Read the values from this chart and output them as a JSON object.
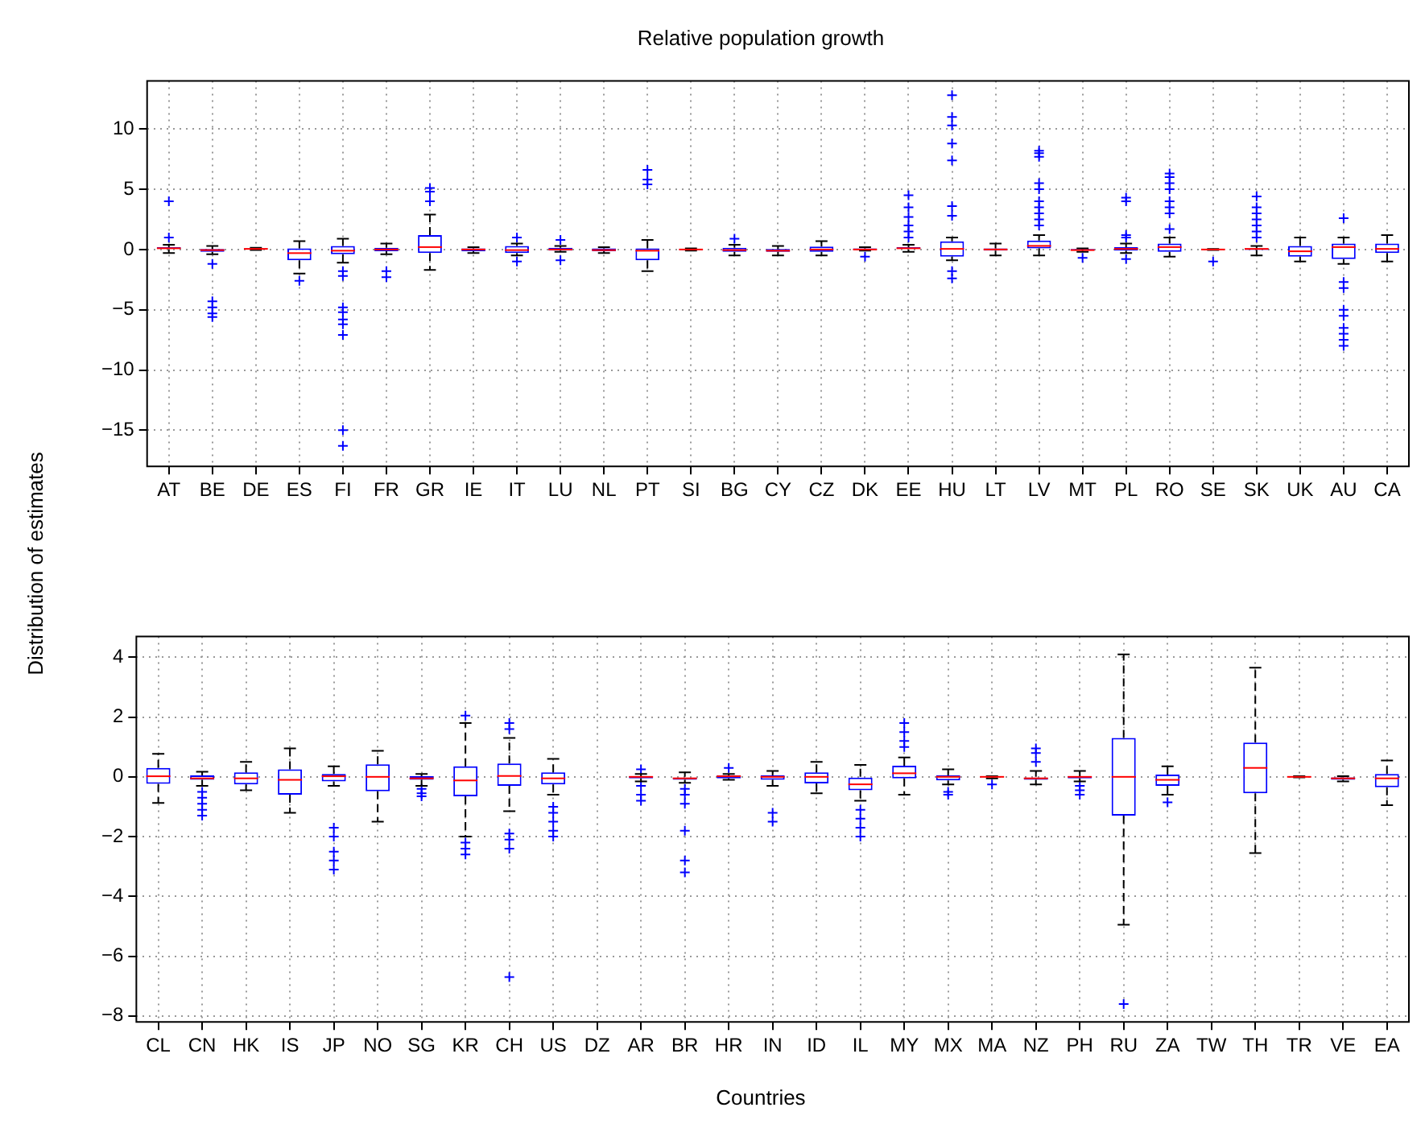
{
  "chart_data": [
    {
      "type": "box",
      "title": "Relative population growth",
      "ylabel": "Distribution of estimates",
      "color": "#0000ff",
      "marker": "cross",
      "grid": true,
      "ylim": [
        -18,
        14
      ],
      "yticks": [
        -15,
        -10,
        -5,
        0,
        5,
        10
      ],
      "categories": [
        "AT",
        "BE",
        "DE",
        "ES",
        "FI",
        "FR",
        "GR",
        "IE",
        "IT",
        "LU",
        "NL",
        "PT",
        "SI",
        "BG",
        "CY",
        "CZ",
        "DK",
        "EE",
        "HU",
        "LT",
        "LV",
        "MT",
        "PL",
        "RO",
        "SE",
        "SK",
        "UK",
        "AU",
        "CA"
      ],
      "boxes": [
        {
          "low": -0.3,
          "q1": 0,
          "median": 0.1,
          "q3": 0.2,
          "high": 0.4,
          "outliers": [
            1,
            4
          ]
        },
        {
          "low": -0.4,
          "q1": -0.2,
          "median": -0.05,
          "q3": 0.05,
          "high": 0.3,
          "outliers": [
            -1.2,
            -4.3,
            -4.8,
            -5.3,
            -5.6
          ]
        },
        {
          "low": -0.05,
          "q1": 0,
          "median": 0.05,
          "q3": 0.1,
          "high": 0.15
        },
        {
          "low": -2,
          "q1": -0.9,
          "median": -0.3,
          "q3": 0.1,
          "high": 0.7,
          "outliers": [
            -2.6
          ]
        },
        {
          "low": -1.1,
          "q1": -0.4,
          "median": -0.1,
          "q3": 0.3,
          "high": 0.9,
          "outliers": [
            -1.8,
            -2.2,
            -4.8,
            -5.2,
            -5.8,
            -6.2,
            -7.1,
            -15,
            -16.3
          ]
        },
        {
          "low": -0.4,
          "q1": -0.15,
          "median": 0,
          "q3": 0.15,
          "high": 0.5,
          "outliers": [
            -1.8,
            -2.3
          ]
        },
        {
          "low": -1.7,
          "q1": -0.3,
          "median": 0.2,
          "q3": 1.2,
          "high": 2.9,
          "outliers": [
            4,
            4.8,
            5.1
          ]
        },
        {
          "low": -0.3,
          "q1": -0.15,
          "median": 0,
          "q3": 0.1,
          "high": 0.2
        },
        {
          "low": -0.5,
          "q1": -0.3,
          "median": -0.05,
          "q3": 0.3,
          "high": 0.5,
          "outliers": [
            -1,
            1
          ]
        },
        {
          "low": -0.2,
          "q1": -0.1,
          "median": 0,
          "q3": 0.15,
          "high": 0.3,
          "outliers": [
            -0.9,
            0.8
          ]
        },
        {
          "low": -0.3,
          "q1": -0.15,
          "median": -0.05,
          "q3": 0.1,
          "high": 0.2
        },
        {
          "low": -1.8,
          "q1": -0.9,
          "median": -0.1,
          "q3": 0.1,
          "high": 0.8,
          "outliers": [
            5.4,
            5.8,
            6.6
          ]
        },
        {
          "low": -0.1,
          "q1": -0.05,
          "median": 0,
          "q3": 0.05,
          "high": 0.1
        },
        {
          "low": -0.5,
          "q1": -0.2,
          "median": -0.05,
          "q3": 0.15,
          "high": 0.4,
          "outliers": [
            0.9
          ]
        },
        {
          "low": -0.5,
          "q1": -0.2,
          "median": -0.1,
          "q3": 0.05,
          "high": 0.3
        },
        {
          "low": -0.5,
          "q1": -0.2,
          "median": 0,
          "q3": 0.25,
          "high": 0.7
        },
        {
          "low": -0.1,
          "q1": -0.05,
          "median": 0,
          "q3": 0.1,
          "high": 0.2,
          "outliers": [
            -0.6
          ]
        },
        {
          "low": -0.2,
          "q1": 0,
          "median": 0.1,
          "q3": 0.2,
          "high": 0.4,
          "outliers": [
            1,
            1.5,
            2,
            2.7,
            3.5,
            4.5
          ]
        },
        {
          "low": -0.9,
          "q1": -0.6,
          "median": 0.05,
          "q3": 0.67,
          "high": 1,
          "outliers": [
            -1.8,
            -2.4,
            2.8,
            3.6,
            7.4,
            8.8,
            10.3,
            11,
            12.8
          ]
        },
        {
          "low": -0.5,
          "q1": -0.1,
          "median": 0,
          "q3": 0.1,
          "high": 0.5
        },
        {
          "low": -0.5,
          "q1": 0.1,
          "median": 0.3,
          "q3": 0.75,
          "high": 1.2,
          "outliers": [
            2,
            2.5,
            3,
            3.5,
            4,
            5,
            5.5,
            7.7,
            8,
            8.2
          ]
        },
        {
          "low": -0.2,
          "q1": -0.1,
          "median": -0.05,
          "q3": 0.05,
          "high": 0.1,
          "outliers": [
            -0.7
          ]
        },
        {
          "low": -0.3,
          "q1": -0.1,
          "median": 0.05,
          "q3": 0.2,
          "high": 0.5,
          "outliers": [
            -0.8,
            1,
            1.2,
            4,
            4.3
          ]
        },
        {
          "low": -0.6,
          "q1": -0.2,
          "median": 0.2,
          "q3": 0.5,
          "high": 1,
          "outliers": [
            1.7,
            3,
            3.5,
            4,
            5,
            5.5,
            6,
            6.3
          ]
        },
        {
          "low": -0.05,
          "q1": -0.02,
          "median": 0,
          "q3": 0.02,
          "high": 0.05,
          "outliers": [
            -1
          ]
        },
        {
          "low": -0.5,
          "q1": -0.05,
          "median": 0.05,
          "q3": 0.1,
          "high": 0.3,
          "outliers": [
            1,
            1.5,
            2,
            2.5,
            3,
            3.5,
            4.4
          ]
        },
        {
          "low": -1,
          "q1": -0.6,
          "median": -0.15,
          "q3": 0.3,
          "high": 1
        },
        {
          "low": -1.2,
          "q1": -0.8,
          "median": 0.2,
          "q3": 0.5,
          "high": 1,
          "outliers": [
            -2.7,
            -3.2,
            -5,
            -5.5,
            -6.5,
            -7,
            -7.5,
            -8,
            2.6
          ]
        },
        {
          "low": -1,
          "q1": -0.3,
          "median": 0.05,
          "q3": 0.5,
          "high": 1.2
        }
      ]
    },
    {
      "type": "box",
      "xlabel": "Countries",
      "color": "#0000ff",
      "marker": "cross",
      "grid": true,
      "ylim": [
        -8.2,
        4.7
      ],
      "yticks": [
        -8,
        -6,
        -4,
        -2,
        0,
        2,
        4
      ],
      "categories": [
        "CL",
        "CN",
        "HK",
        "IS",
        "JP",
        "NO",
        "SG",
        "KR",
        "CH",
        "US",
        "DZ",
        "AR",
        "BR",
        "HR",
        "IN",
        "ID",
        "IL",
        "MY",
        "MX",
        "MA",
        "NZ",
        "PH",
        "RU",
        "ZA",
        "TW",
        "TH",
        "TR",
        "VE",
        "EA"
      ],
      "boxes": [
        {
          "low": -0.87,
          "q1": -0.23,
          "median": 0.02,
          "q3": 0.3,
          "high": 0.77
        },
        {
          "low": -0.3,
          "q1": -0.1,
          "median": -0.05,
          "q3": 0.05,
          "high": 0.17,
          "outliers": [
            -0.5,
            -0.7,
            -0.9,
            -1.1,
            -1.3
          ]
        },
        {
          "low": -0.45,
          "q1": -0.25,
          "median": -0.05,
          "q3": 0.15,
          "high": 0.5
        },
        {
          "low": -1.2,
          "q1": -0.6,
          "median": -0.1,
          "q3": 0.25,
          "high": 0.95
        },
        {
          "low": -0.3,
          "q1": -0.15,
          "median": 0.02,
          "q3": 0.1,
          "high": 0.35,
          "outliers": [
            -1.7,
            -2,
            -2.5,
            -2.8,
            -3.1
          ]
        },
        {
          "low": -1.5,
          "q1": -0.48,
          "median": 0,
          "q3": 0.42,
          "high": 0.87
        },
        {
          "low": -0.3,
          "q1": -0.1,
          "median": -0.05,
          "q3": 0.02,
          "high": 0.1,
          "outliers": [
            -0.4,
            -0.55,
            -0.65
          ]
        },
        {
          "low": -2,
          "q1": -0.65,
          "median": -0.12,
          "q3": 0.35,
          "high": 1.8,
          "outliers": [
            2.05,
            -2.2,
            -2.4,
            -2.6
          ]
        },
        {
          "low": -1.15,
          "q1": -0.3,
          "median": 0.03,
          "q3": 0.45,
          "high": 1.3,
          "outliers": [
            1.6,
            1.8,
            -1.9,
            -2.1,
            -2.4,
            -6.7
          ]
        },
        {
          "low": -0.6,
          "q1": -0.25,
          "median": -0.05,
          "q3": 0.15,
          "high": 0.6,
          "outliers": [
            -1,
            -1.2,
            -1.5,
            -1.8,
            -2
          ]
        },
        null,
        {
          "low": -0.15,
          "q1": -0.05,
          "median": 0,
          "q3": 0.02,
          "high": 0.1,
          "outliers": [
            -0.3,
            -0.6,
            -0.8,
            0.25
          ]
        },
        {
          "low": -0.2,
          "q1": -0.1,
          "median": -0.05,
          "q3": 0,
          "high": 0.15,
          "outliers": [
            -0.4,
            -0.6,
            -0.9,
            -1.8,
            -2.8,
            -3.2
          ]
        },
        {
          "low": -0.1,
          "q1": -0.05,
          "median": 0.02,
          "q3": 0.05,
          "high": 0.1,
          "outliers": [
            0.3
          ]
        },
        {
          "low": -0.3,
          "q1": -0.1,
          "median": 0,
          "q3": 0.05,
          "high": 0.2,
          "outliers": [
            -1.2,
            -1.5
          ]
        },
        {
          "low": -0.55,
          "q1": -0.22,
          "median": 0,
          "q3": 0.15,
          "high": 0.5
        },
        {
          "low": -0.8,
          "q1": -0.45,
          "median": -0.25,
          "q3": 0,
          "high": 0.4,
          "outliers": [
            -1.1,
            -1.4,
            -1.7,
            -2
          ]
        },
        {
          "low": -0.6,
          "q1": -0.05,
          "median": 0.12,
          "q3": 0.37,
          "high": 0.65,
          "outliers": [
            1,
            1.2,
            1.5,
            1.8
          ]
        },
        {
          "low": -0.25,
          "q1": -0.12,
          "median": 0,
          "q3": 0.05,
          "high": 0.25,
          "outliers": [
            -0.5,
            -0.6
          ]
        },
        {
          "low": -0.05,
          "q1": -0.02,
          "median": 0,
          "q3": 0,
          "high": 0.02,
          "outliers": [
            -0.25
          ]
        },
        {
          "low": -0.25,
          "q1": -0.1,
          "median": -0.05,
          "q3": 0,
          "high": 0.2,
          "outliers": [
            0.5,
            0.8,
            0.95
          ]
        },
        {
          "low": -0.15,
          "q1": -0.05,
          "median": 0,
          "q3": 0.02,
          "high": 0.2,
          "outliers": [
            -0.3,
            -0.45,
            -0.6
          ]
        },
        {
          "low": -4.95,
          "q1": -1.3,
          "median": 0,
          "q3": 1.3,
          "high": 4.1,
          "outliers": [
            -7.6
          ]
        },
        {
          "low": -0.6,
          "q1": -0.3,
          "median": -0.1,
          "q3": 0.08,
          "high": 0.35,
          "outliers": [
            -0.85
          ]
        },
        null,
        {
          "low": -2.55,
          "q1": -0.55,
          "median": 0.3,
          "q3": 1.15,
          "high": 3.65
        },
        {
          "low": -0.02,
          "q1": -0.01,
          "median": 0,
          "q3": 0.01,
          "high": 0.02
        },
        {
          "low": -0.15,
          "q1": -0.1,
          "median": -0.05,
          "q3": -0.02,
          "high": 0.02
        },
        {
          "low": -0.95,
          "q1": -0.35,
          "median": -0.05,
          "q3": 0.1,
          "high": 0.55
        }
      ]
    }
  ]
}
